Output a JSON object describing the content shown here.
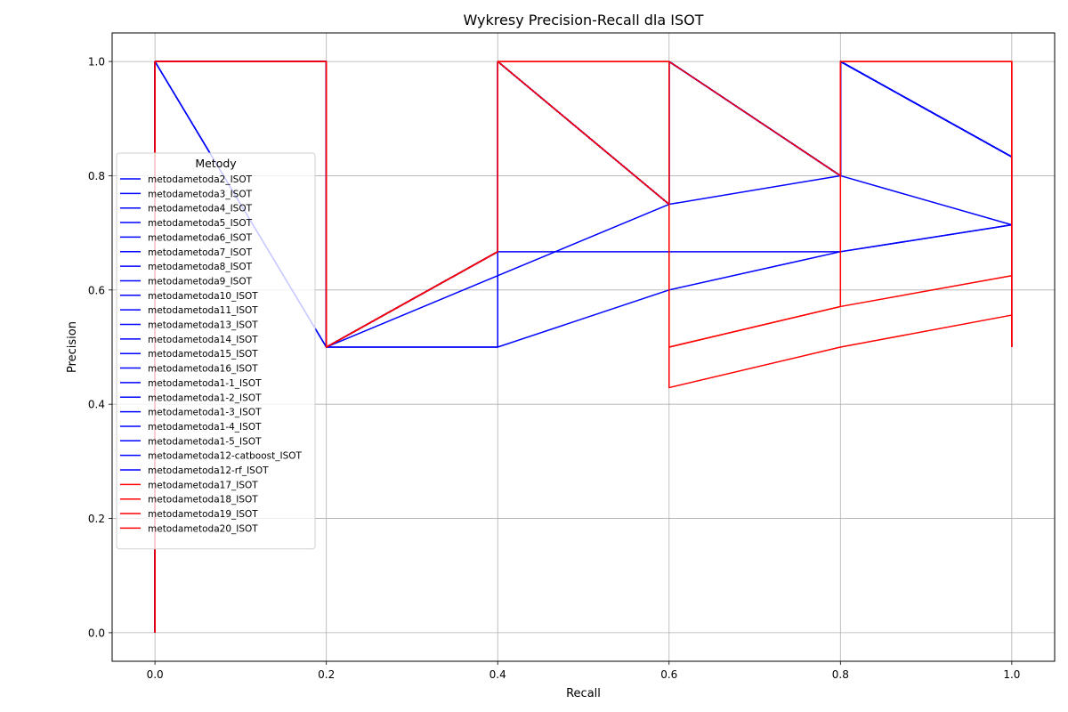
{
  "chart_data": {
    "type": "line",
    "title": "Wykresy Precision-Recall dla ISOT",
    "xlabel": "Recall",
    "ylabel": "Precision",
    "xlim": [
      -0.05,
      1.05
    ],
    "ylim": [
      -0.05,
      1.05
    ],
    "xticks": [
      "0.0",
      "0.2",
      "0.4",
      "0.6",
      "0.8",
      "1.0"
    ],
    "yticks": [
      "0.0",
      "0.2",
      "0.4",
      "0.6",
      "0.8",
      "1.0"
    ],
    "grid": true,
    "legend": {
      "title": "Metody",
      "placement": "center-left"
    },
    "series": [
      {
        "name": "metodametoda2_ISOT",
        "color": "#0000ff",
        "x": [
          0,
          0,
          0.2,
          0.2,
          0.4,
          0.4,
          0.6,
          0.6,
          0.8,
          0.8,
          1.0,
          1.0
        ],
        "y": [
          0,
          1,
          1,
          0.5,
          0.667,
          1,
          0.75,
          1,
          0.8,
          1,
          0.833,
          0.5
        ]
      },
      {
        "name": "metodametoda3_ISOT",
        "color": "#0000ff",
        "x": [
          0,
          0,
          0.2,
          0.2,
          0.4,
          0.4,
          0.6,
          0.6,
          0.8,
          0.8,
          1.0
        ],
        "y": [
          0,
          1,
          1,
          0.5,
          0.667,
          1,
          0.75,
          1,
          0.8,
          1,
          0.833
        ]
      },
      {
        "name": "metodametoda4_ISOT",
        "color": "#0000ff",
        "x": [
          0,
          0,
          0.2,
          0.2,
          0.4,
          0.4,
          0.6,
          0.6,
          0.8,
          0.8,
          1.0
        ],
        "y": [
          0,
          1,
          1,
          0.5,
          0.667,
          1,
          0.75,
          1,
          0.8,
          1,
          0.833
        ]
      },
      {
        "name": "metodametoda5_ISOT",
        "color": "#0000ff",
        "x": [
          0,
          0,
          0.2,
          0.6,
          0.8,
          1.0
        ],
        "y": [
          0,
          1,
          0.5,
          0.75,
          0.8,
          0.714
        ]
      },
      {
        "name": "metodametoda6_ISOT",
        "color": "#0000ff",
        "x": [
          0,
          0,
          0.2,
          0.4,
          0.4,
          0.8,
          1.0
        ],
        "y": [
          0,
          1,
          0.5,
          0.5,
          0.667,
          0.667,
          0.714
        ]
      },
      {
        "name": "metodametoda7_ISOT",
        "color": "#0000ff",
        "x": [
          0,
          0,
          0.2,
          0.4,
          0.6,
          0.8,
          1.0
        ],
        "y": [
          0,
          1,
          0.5,
          0.5,
          0.6,
          0.667,
          0.714
        ]
      },
      {
        "name": "metodametoda8_ISOT",
        "color": "#0000ff",
        "x": [
          0,
          0,
          0.2,
          0.2,
          0.4,
          0.4,
          0.6,
          0.6,
          0.8,
          0.8,
          1.0
        ],
        "y": [
          0,
          1,
          1,
          0.5,
          0.667,
          1,
          0.75,
          1,
          0.8,
          1,
          0.833
        ]
      },
      {
        "name": "metodametoda9_ISOT",
        "color": "#0000ff",
        "x": [
          0,
          0,
          0.2,
          0.2,
          0.4,
          0.4,
          0.6,
          0.6,
          0.8,
          0.8,
          1.0
        ],
        "y": [
          0,
          1,
          1,
          0.5,
          0.667,
          1,
          0.75,
          1,
          0.8,
          1,
          0.833
        ]
      },
      {
        "name": "metodametoda10_ISOT",
        "color": "#0000ff",
        "x": [
          0,
          0,
          0.2,
          0.2,
          0.4,
          0.4,
          0.6,
          0.6,
          0.8,
          0.8,
          1.0
        ],
        "y": [
          0,
          1,
          1,
          0.5,
          0.667,
          1,
          0.75,
          1,
          0.8,
          1,
          0.833
        ]
      },
      {
        "name": "metodametoda11_ISOT",
        "color": "#0000ff",
        "x": [
          0,
          0,
          0.2,
          0.2,
          0.4,
          0.4,
          0.6,
          0.6,
          0.8,
          0.8,
          1.0
        ],
        "y": [
          0,
          1,
          1,
          0.5,
          0.667,
          1,
          0.75,
          1,
          0.8,
          1,
          0.833
        ]
      },
      {
        "name": "metodametoda13_ISOT",
        "color": "#0000ff",
        "x": [
          0,
          0,
          0.2,
          0.2,
          0.4,
          0.4,
          0.6,
          0.6,
          0.8,
          0.8,
          1.0
        ],
        "y": [
          0,
          1,
          1,
          0.5,
          0.667,
          1,
          0.75,
          1,
          0.8,
          1,
          0.833
        ]
      },
      {
        "name": "metodametoda14_ISOT",
        "color": "#0000ff",
        "x": [
          0,
          0,
          0.2,
          0.2,
          0.4,
          0.4,
          0.6,
          0.6,
          0.8,
          0.8,
          1.0
        ],
        "y": [
          0,
          1,
          1,
          0.5,
          0.667,
          1,
          0.75,
          1,
          0.8,
          1,
          0.833
        ]
      },
      {
        "name": "metodametoda15_ISOT",
        "color": "#0000ff",
        "x": [
          0,
          0,
          0.2,
          0.2,
          0.4,
          0.4,
          0.6,
          0.6,
          0.8,
          0.8,
          1.0
        ],
        "y": [
          0,
          1,
          1,
          0.5,
          0.667,
          1,
          0.75,
          1,
          0.8,
          1,
          0.833
        ]
      },
      {
        "name": "metodametoda16_ISOT",
        "color": "#0000ff",
        "x": [
          0,
          0,
          0.2,
          0.2,
          0.4,
          0.4,
          0.6,
          0.6,
          0.8,
          0.8,
          1.0
        ],
        "y": [
          0,
          1,
          1,
          0.5,
          0.667,
          1,
          0.75,
          1,
          0.8,
          1,
          0.833
        ]
      },
      {
        "name": "metodametoda1-1_ISOT",
        "color": "#0000ff",
        "x": [
          0,
          0,
          0.2,
          0.2,
          0.4,
          0.4,
          0.6,
          0.6,
          0.8,
          0.8,
          1.0
        ],
        "y": [
          0,
          1,
          1,
          0.5,
          0.667,
          1,
          0.75,
          1,
          0.8,
          1,
          0.833
        ]
      },
      {
        "name": "metodametoda1-2_ISOT",
        "color": "#0000ff",
        "x": [
          0,
          0,
          0.2,
          0.2,
          0.4,
          0.4,
          0.6,
          0.6,
          0.8,
          0.8,
          1.0
        ],
        "y": [
          0,
          1,
          1,
          0.5,
          0.667,
          1,
          0.75,
          1,
          0.8,
          1,
          0.833
        ]
      },
      {
        "name": "metodametoda1-3_ISOT",
        "color": "#0000ff",
        "x": [
          0,
          0,
          0.2,
          0.2,
          0.4,
          0.4,
          0.6,
          0.6,
          0.8,
          0.8,
          1.0
        ],
        "y": [
          0,
          1,
          1,
          0.5,
          0.667,
          1,
          0.75,
          1,
          0.8,
          1,
          0.833
        ]
      },
      {
        "name": "metodametoda1-4_ISOT",
        "color": "#0000ff",
        "x": [
          0,
          0,
          0.2,
          0.2,
          0.4,
          0.4,
          0.6,
          0.6,
          0.8,
          0.8,
          1.0
        ],
        "y": [
          0,
          1,
          1,
          0.5,
          0.667,
          1,
          0.75,
          1,
          0.8,
          1,
          0.833
        ]
      },
      {
        "name": "metodametoda1-5_ISOT",
        "color": "#0000ff",
        "x": [
          0,
          0,
          0.2,
          0.2,
          0.4,
          0.4,
          0.6,
          0.6,
          0.8,
          0.8,
          1.0
        ],
        "y": [
          0,
          1,
          1,
          0.5,
          0.667,
          1,
          0.75,
          1,
          0.8,
          1,
          0.833
        ]
      },
      {
        "name": "metodametoda12-catboost_ISOT",
        "color": "#0000ff",
        "x": [
          0,
          0,
          0.2,
          0.2,
          0.4,
          0.4,
          0.6,
          0.6,
          0.8,
          0.8,
          1.0
        ],
        "y": [
          0,
          1,
          1,
          0.5,
          0.667,
          1,
          0.75,
          1,
          0.8,
          1,
          0.833
        ]
      },
      {
        "name": "metodametoda12-rf_ISOT",
        "color": "#0000ff",
        "x": [
          0,
          0,
          0.2,
          0.2,
          0.4,
          0.4,
          0.6,
          0.6,
          0.8,
          0.8,
          1.0
        ],
        "y": [
          0,
          1,
          1,
          0.5,
          0.667,
          1,
          0.75,
          1,
          0.8,
          1,
          0.833
        ]
      },
      {
        "name": "metodametoda17_ISOT",
        "color": "#ff0000",
        "x": [
          0,
          0,
          0.2,
          0.2,
          0.4,
          0.4,
          0.6,
          0.6,
          0.8,
          0.8,
          1.0,
          1.0
        ],
        "y": [
          0,
          1,
          1,
          0.5,
          0.667,
          1,
          0.75,
          1,
          0.8,
          1,
          1,
          0.5
        ]
      },
      {
        "name": "metodametoda18_ISOT",
        "color": "#ff0000",
        "x": [
          0,
          0,
          0.2,
          0.2,
          0.4,
          0.4,
          0.6,
          0.6,
          0.8,
          0.8,
          1.0,
          1.0
        ],
        "y": [
          0,
          1,
          1,
          0.5,
          0.667,
          1,
          0.75,
          0.5,
          0.571,
          1,
          1,
          0.625
        ]
      },
      {
        "name": "metodametoda19_ISOT",
        "color": "#ff0000",
        "x": [
          0,
          0,
          0.2,
          0.2,
          0.4,
          0.4,
          0.6,
          0.6,
          0.8,
          0.8,
          1.0,
          1.0
        ],
        "y": [
          0,
          1,
          1,
          0.5,
          0.667,
          1,
          1,
          0.5,
          0.571,
          0.571,
          0.625,
          0.5
        ]
      },
      {
        "name": "metodametoda20_ISOT",
        "color": "#ff0000",
        "x": [
          0,
          0,
          0.2,
          0.2,
          0.4,
          0.4,
          0.6,
          0.6,
          0.8,
          1.0,
          1.0
        ],
        "y": [
          0,
          1,
          1,
          0.5,
          0.667,
          1,
          1,
          0.429,
          0.5,
          0.556,
          0.5
        ]
      }
    ]
  }
}
